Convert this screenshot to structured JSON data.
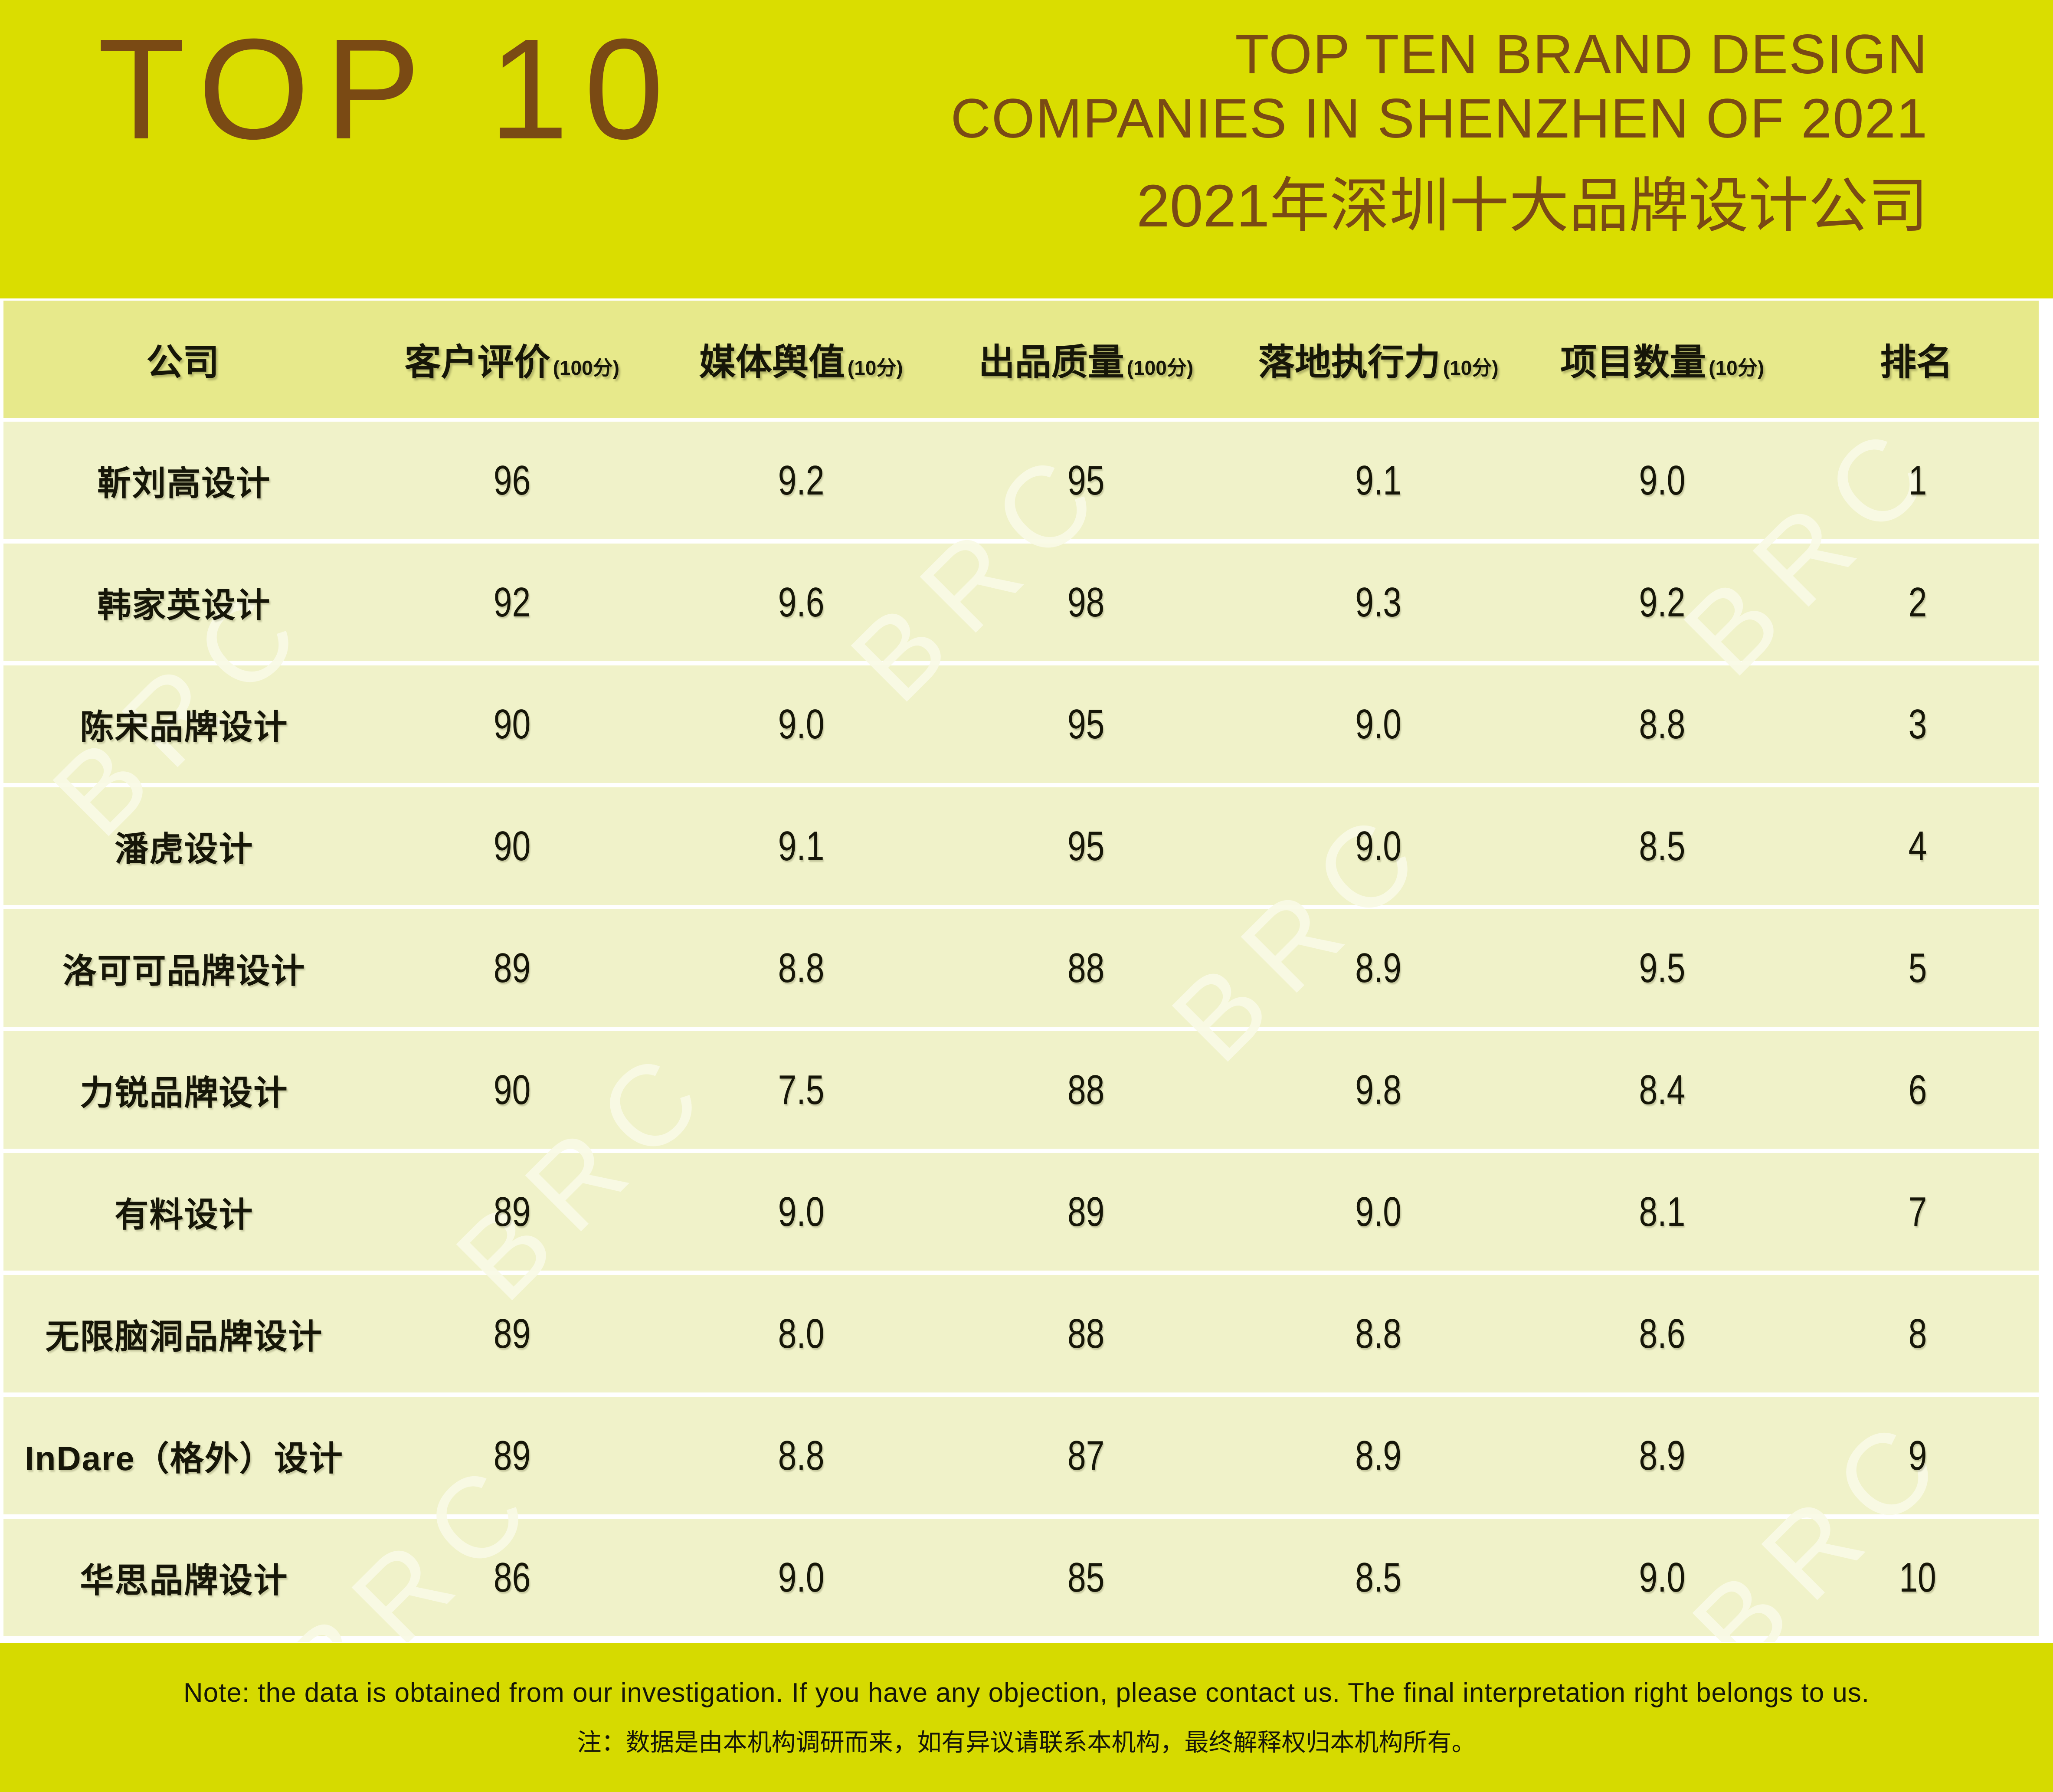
{
  "colors": {
    "header_bg": "#dadd00",
    "thead_bg": "#e7e98b",
    "row_bg": "#f0f2c9",
    "footer_bg": "#d6da00",
    "title_brown": "#7a4a14",
    "text_dark": "#161608",
    "watermark": "#f9fae6"
  },
  "header": {
    "badge": "TOP 10",
    "title_line1": "TOP TEN BRAND DESIGN",
    "title_line2": "COMPANIES IN SHENZHEN OF 2021",
    "subtitle_cn": "2021年深圳十大品牌设计公司"
  },
  "watermark": {
    "text": "BRC"
  },
  "table": {
    "columns": [
      {
        "label": "公司",
        "suffix": ""
      },
      {
        "label": "客户评价",
        "suffix": "(100分)"
      },
      {
        "label": "媒体舆值",
        "suffix": "(10分)"
      },
      {
        "label": "出品质量",
        "suffix": "(100分)"
      },
      {
        "label": "落地执行力",
        "suffix": "(10分)"
      },
      {
        "label": "项目数量",
        "suffix": "(10分)"
      },
      {
        "label": "排名",
        "suffix": ""
      }
    ],
    "row_fields": [
      "company",
      "customer",
      "media",
      "quality",
      "execution",
      "projects",
      "rank"
    ],
    "rows": [
      {
        "company": "靳刘高设计",
        "customer": "96",
        "media": "9.2",
        "quality": "95",
        "execution": "9.1",
        "projects": "9.0",
        "rank": "1"
      },
      {
        "company": "韩家英设计",
        "customer": "92",
        "media": "9.6",
        "quality": "98",
        "execution": "9.3",
        "projects": "9.2",
        "rank": "2"
      },
      {
        "company": "陈宋品牌设计",
        "customer": "90",
        "media": "9.0",
        "quality": "95",
        "execution": "9.0",
        "projects": "8.8",
        "rank": "3"
      },
      {
        "company": "潘虎设计",
        "customer": "90",
        "media": "9.1",
        "quality": "95",
        "execution": "9.0",
        "projects": "8.5",
        "rank": "4"
      },
      {
        "company": "洛可可品牌设计",
        "customer": "89",
        "media": "8.8",
        "quality": "88",
        "execution": "8.9",
        "projects": "9.5",
        "rank": "5"
      },
      {
        "company": "力锐品牌设计",
        "customer": "90",
        "media": "7.5",
        "quality": "88",
        "execution": "9.8",
        "projects": "8.4",
        "rank": "6"
      },
      {
        "company": "有料设计",
        "customer": "89",
        "media": "9.0",
        "quality": "89",
        "execution": "9.0",
        "projects": "8.1",
        "rank": "7"
      },
      {
        "company": "无限脑洞品牌设计",
        "customer": "89",
        "media": "8.0",
        "quality": "88",
        "execution": "8.8",
        "projects": "8.6",
        "rank": "8"
      },
      {
        "company": "InDare（格外）设计",
        "customer": "89",
        "media": "8.8",
        "quality": "87",
        "execution": "8.9",
        "projects": "8.9",
        "rank": "9"
      },
      {
        "company": "华思品牌设计",
        "customer": "86",
        "media": "9.0",
        "quality": "85",
        "execution": "8.5",
        "projects": "9.0",
        "rank": "10"
      }
    ]
  },
  "footer": {
    "note_en": "Note: the data is obtained from our investigation. If you have any objection, please contact us. The final interpretation right belongs to us.",
    "note_cn": "注：数据是由本机构调研而来，如有异议请联系本机构，最终解释权归本机构所有。"
  },
  "chart_data": {
    "type": "table",
    "title": "TOP TEN BRAND DESIGN COMPANIES IN SHENZHEN OF 2021 / 2021年深圳十大品牌设计公司",
    "columns": [
      "公司",
      "客户评价(100分)",
      "媒体舆值(10分)",
      "出品质量(100分)",
      "落地执行力(10分)",
      "项目数量(10分)",
      "排名"
    ],
    "rows": [
      [
        "靳刘高设计",
        96,
        9.2,
        95,
        9.1,
        9.0,
        1
      ],
      [
        "韩家英设计",
        92,
        9.6,
        98,
        9.3,
        9.2,
        2
      ],
      [
        "陈宋品牌设计",
        90,
        9.0,
        95,
        9.0,
        8.8,
        3
      ],
      [
        "潘虎设计",
        90,
        9.1,
        95,
        9.0,
        8.5,
        4
      ],
      [
        "洛可可品牌设计",
        89,
        8.8,
        88,
        8.9,
        9.5,
        5
      ],
      [
        "力锐品牌设计",
        90,
        7.5,
        88,
        9.8,
        8.4,
        6
      ],
      [
        "有料设计",
        89,
        9.0,
        89,
        9.0,
        8.1,
        7
      ],
      [
        "无限脑洞品牌设计",
        89,
        8.0,
        88,
        8.8,
        8.6,
        8
      ],
      [
        "InDare（格外）设计",
        89,
        8.8,
        87,
        8.9,
        8.9,
        9
      ],
      [
        "华思品牌设计",
        86,
        9.0,
        85,
        8.5,
        9.0,
        10
      ]
    ],
    "notes": [
      "Note: the data is obtained from our investigation. If you have any objection, please contact us. The final interpretation right belongs to us.",
      "注：数据是由本机构调研而来，如有异议请联系本机构，最终解释权归本机构所有。"
    ]
  }
}
